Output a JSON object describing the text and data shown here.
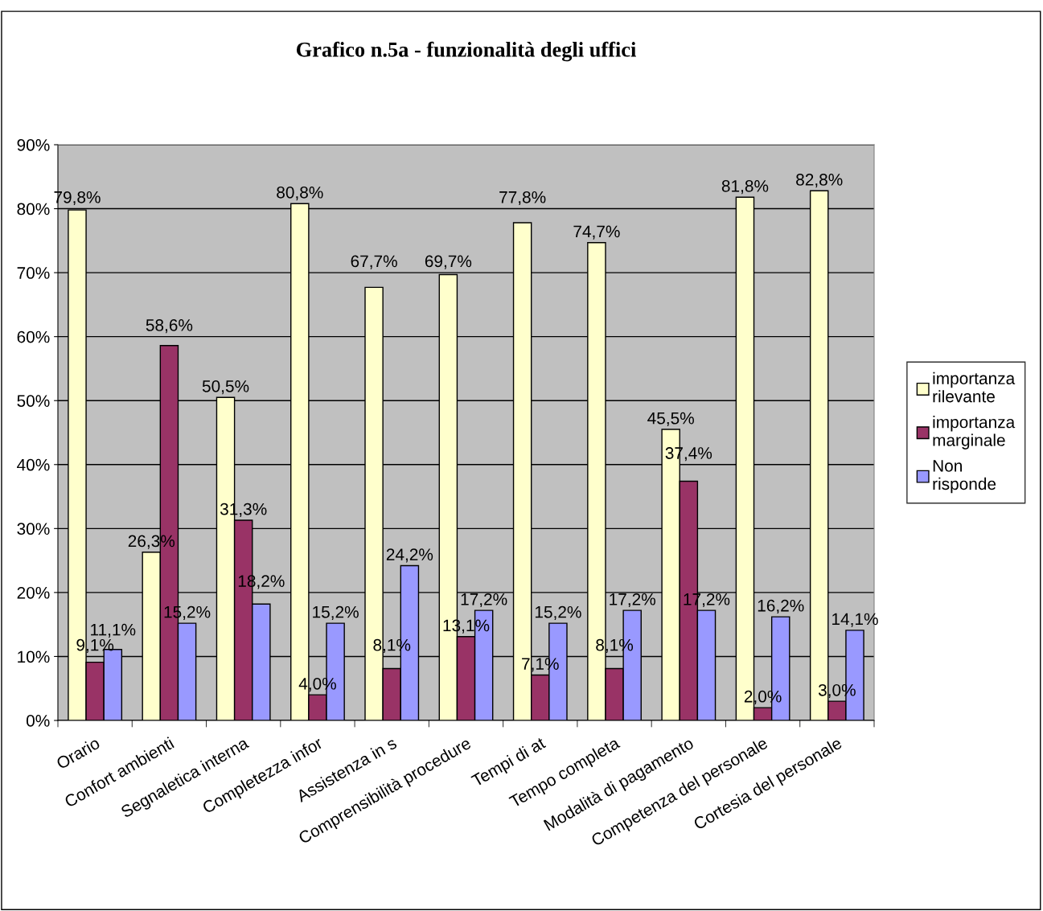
{
  "chart_data": {
    "type": "bar",
    "title": "Grafico n.5a - funzionalità degli uffici",
    "categories": [
      "Orario",
      "Confort ambienti",
      "Segnaletica interna",
      "Completezza infor",
      "Assistenza in s",
      "Comprensibilità procedure",
      "Tempi di at",
      "Tempo completa",
      "Modalità di pagamento",
      "Competenza del personale",
      "Cortesia del personale"
    ],
    "series": [
      {
        "name": "importanza rilevante",
        "color": "#ffffcc",
        "values": [
          79.8,
          26.3,
          50.5,
          80.8,
          67.7,
          69.7,
          77.8,
          74.7,
          45.5,
          81.8,
          82.8
        ],
        "value_labels": [
          "79,8%",
          "26,3%",
          "50,5%",
          "80,8%",
          "67,7%",
          "69,7%",
          "77,8%",
          "74,7%",
          "45,5%",
          "81,8%",
          "82,8%"
        ]
      },
      {
        "name": "importanza marginale",
        "color": "#993366",
        "values": [
          9.1,
          58.6,
          31.3,
          4.0,
          8.1,
          13.1,
          7.1,
          8.1,
          37.4,
          2.0,
          3.0
        ],
        "value_labels": [
          "9,1%",
          "58,6%",
          "31,3%",
          "4,0%",
          "8,1%",
          "13,1%",
          "7,1%",
          "8,1%",
          "37,4%",
          "2,0%",
          "3,0%"
        ]
      },
      {
        "name": "Non risponde",
        "color": "#9999ff",
        "values": [
          11.1,
          15.2,
          18.2,
          15.2,
          24.2,
          17.2,
          15.2,
          17.2,
          17.2,
          16.2,
          14.1
        ],
        "value_labels": [
          "11,1%",
          "15,2%",
          "18,2%",
          "15,2%",
          "24,2%",
          "17,2%",
          "15,2%",
          "17,2%",
          "17,2%",
          "16,2%",
          "14,1%"
        ]
      }
    ],
    "ylim": [
      0,
      90
    ],
    "yticks": [
      {
        "value": 0,
        "label": "0%"
      },
      {
        "value": 10,
        "label": "10%"
      },
      {
        "value": 20,
        "label": "20%"
      },
      {
        "value": 30,
        "label": "30%"
      },
      {
        "value": 40,
        "label": "40%"
      },
      {
        "value": 50,
        "label": "50%"
      },
      {
        "value": 60,
        "label": "60%"
      },
      {
        "value": 70,
        "label": "70%"
      },
      {
        "value": 80,
        "label": "80%"
      },
      {
        "value": 90,
        "label": "90%"
      }
    ],
    "grid": "y",
    "legend": "right"
  }
}
